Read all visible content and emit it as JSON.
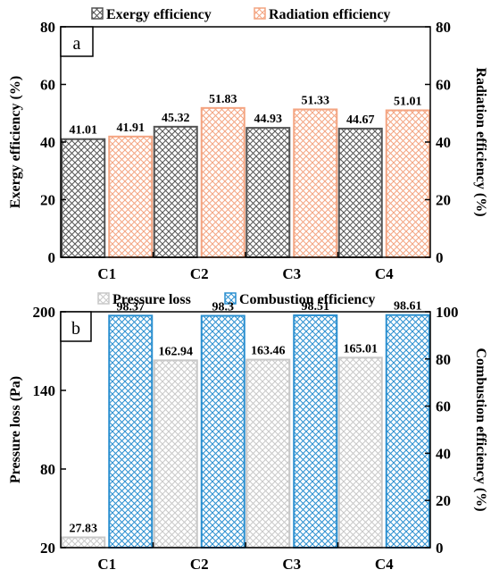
{
  "chart_data": [
    {
      "type": "bar",
      "panel_label": "a",
      "categories": [
        "C1",
        "C2",
        "C3",
        "C4"
      ],
      "series": [
        {
          "name": "Exergy efficiency",
          "values": [
            41.01,
            45.32,
            44.93,
            44.67
          ],
          "axis": "left",
          "color": "#555555",
          "pattern": "crosshatch",
          "labels": [
            "41.01",
            "45.32",
            "44.93",
            "44.67"
          ]
        },
        {
          "name": "Radiation efficiency",
          "values": [
            41.91,
            51.83,
            51.33,
            51.01
          ],
          "axis": "right",
          "color": "#f4a582",
          "pattern": "crosshatch",
          "labels": [
            "41.91",
            "51.83",
            "51.33",
            "51.01"
          ]
        }
      ],
      "ylabel_left": "Exergy efficiency (%)",
      "ylabel_right": "Radiation efficiency (%)",
      "ylim_left": [
        0,
        80
      ],
      "ylim_right": [
        0,
        80
      ],
      "yticks_left": [
        "0",
        "20",
        "40",
        "60",
        "80"
      ],
      "yticks_right": [
        "0",
        "20",
        "40",
        "60",
        "80"
      ],
      "legend_position": "top",
      "grid": false
    },
    {
      "type": "bar",
      "panel_label": "b",
      "categories": [
        "C1",
        "C2",
        "C3",
        "C4"
      ],
      "series": [
        {
          "name": "Pressure loss",
          "values": [
            27.83,
            162.94,
            163.46,
            165.01
          ],
          "axis": "left",
          "color": "#c8c8c8",
          "pattern": "crosshatch",
          "labels": [
            "27.83",
            "162.94",
            "163.46",
            "165.01"
          ]
        },
        {
          "name": "Combustion efficiency",
          "values": [
            98.37,
            98.3,
            98.51,
            98.61
          ],
          "axis": "right",
          "color": "#2a8fd0",
          "pattern": "crosshatch",
          "labels": [
            "98.37",
            "98.3",
            "98.51",
            "98.61"
          ]
        }
      ],
      "ylabel_left": "Pressure loss (Pa)",
      "ylabel_right": "Combustion efficiency (%)",
      "ylim_left": [
        20,
        200
      ],
      "ylim_right": [
        0,
        100
      ],
      "yticks_left": [
        "20",
        "80",
        "140",
        "200"
      ],
      "yticks_right": [
        "0",
        "20",
        "40",
        "60",
        "80",
        "100"
      ],
      "legend_position": "top",
      "grid": false
    }
  ]
}
